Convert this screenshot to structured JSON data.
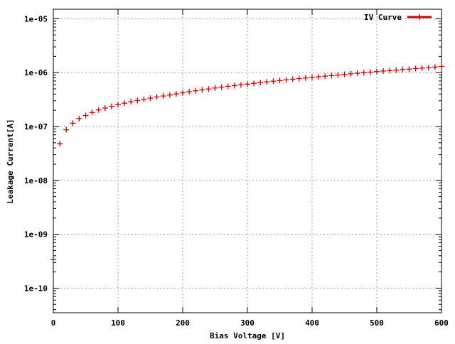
{
  "chart_data": {
    "type": "scatter",
    "xlabel": "Bias Voltage [V]",
    "ylabel": "Leakage Current[A]",
    "xlim": [
      0,
      600
    ],
    "ylim": [
      3.5e-11,
      1.5e-05
    ],
    "yscale": "log",
    "grid": true,
    "legend_position": "top-right",
    "x_ticks": [
      0,
      100,
      200,
      300,
      400,
      500,
      600
    ],
    "x_tick_labels": [
      "0",
      "100",
      "200",
      "300",
      "400",
      "500",
      "600"
    ],
    "y_ticks": [
      1e-10,
      1e-09,
      1e-08,
      1e-07,
      1e-06,
      1e-05
    ],
    "y_tick_labels": [
      "1e-10",
      "1e-09",
      "1e-08",
      "1e-07",
      "1e-06",
      "1e-05"
    ],
    "series": [
      {
        "name": "IV Curve",
        "color": "#cc0000",
        "marker": "plus",
        "x": [
          0,
          10,
          20,
          30,
          40,
          50,
          60,
          70,
          80,
          90,
          100,
          110,
          120,
          130,
          140,
          150,
          160,
          170,
          180,
          190,
          200,
          210,
          220,
          230,
          240,
          250,
          260,
          270,
          280,
          290,
          300,
          310,
          320,
          330,
          340,
          350,
          360,
          370,
          380,
          390,
          400,
          410,
          420,
          430,
          440,
          450,
          460,
          470,
          480,
          490,
          500,
          510,
          520,
          530,
          540,
          550,
          560,
          570,
          580,
          590,
          600
        ],
        "y": [
          3.4e-10,
          4.8e-08,
          8.7e-08,
          1.15e-07,
          1.4e-07,
          1.6e-07,
          1.82e-07,
          2.03e-07,
          2.2e-07,
          2.37e-07,
          2.55e-07,
          2.71e-07,
          2.88e-07,
          3.03e-07,
          3.2e-07,
          3.36e-07,
          3.53e-07,
          3.68e-07,
          3.84e-07,
          4.03e-07,
          4.22e-07,
          4.42e-07,
          4.6e-07,
          4.78e-07,
          4.97e-07,
          5.18e-07,
          5.38e-07,
          5.57e-07,
          5.74e-07,
          5.93e-07,
          6.13e-07,
          6.33e-07,
          6.52e-07,
          6.73e-07,
          6.93e-07,
          7.13e-07,
          7.34e-07,
          7.54e-07,
          7.75e-07,
          7.95e-07,
          8.15e-07,
          8.37e-07,
          8.58e-07,
          8.8e-07,
          9.03e-07,
          9.26e-07,
          9.5e-07,
          9.72e-07,
          9.96e-07,
          1.02e-06,
          1.045e-06,
          1.07e-06,
          1.09e-06,
          1.11e-06,
          1.14e-06,
          1.16e-06,
          1.19e-06,
          1.21e-06,
          1.24e-06,
          1.27e-06,
          1.3e-06
        ]
      }
    ]
  }
}
